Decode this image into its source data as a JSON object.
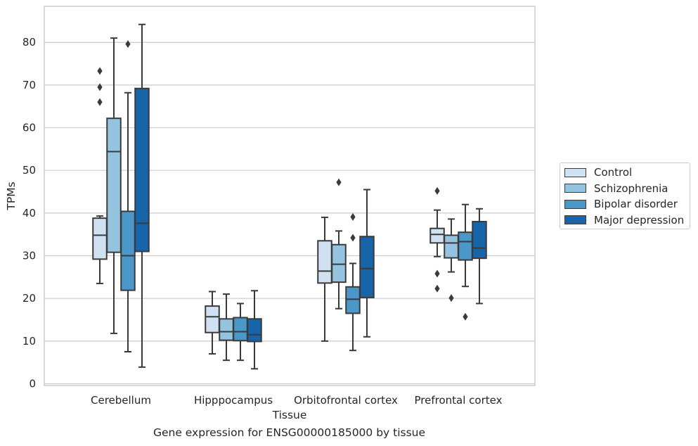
{
  "chart_data": {
    "type": "boxplot",
    "xlabel": "Tissue",
    "ylabel": "TPMs",
    "caption": "Gene expression for ENSG00000185000 by tissue",
    "ylim": [
      0,
      88
    ],
    "yticks": [
      0,
      10,
      20,
      30,
      40,
      50,
      60,
      70,
      80
    ],
    "grid": "horizontal",
    "legend_position": "right, outside plot",
    "categories": [
      "Cerebellum",
      "Hipppocampus",
      "Orbitofrontal cortex",
      "Prefrontal cortex"
    ],
    "series": [
      {
        "name": "Control",
        "color": "#d0e1f2",
        "boxes": [
          {
            "whislo": 23.5,
            "q1": 29.2,
            "med": 34.8,
            "q3": 38.8,
            "whishi": 39.3,
            "fliers": [
              66,
              69.5,
              73.3
            ]
          },
          {
            "whislo": 7,
            "q1": 12,
            "med": 15.7,
            "q3": 18.2,
            "whishi": 21.6,
            "fliers": []
          },
          {
            "whislo": 10,
            "q1": 23.6,
            "med": 26.4,
            "q3": 33.5,
            "whishi": 39,
            "fliers": []
          },
          {
            "whislo": 29.8,
            "q1": 33,
            "med": 35,
            "q3": 36.4,
            "whishi": 40.7,
            "fliers": [
              45.2,
              25.8,
              22.3
            ]
          }
        ]
      },
      {
        "name": "Schizophrenia",
        "color": "#94c4df",
        "boxes": [
          {
            "whislo": 11.8,
            "q1": 30.8,
            "med": 54.4,
            "q3": 62.2,
            "whishi": 81,
            "fliers": []
          },
          {
            "whislo": 5.5,
            "q1": 10.2,
            "med": 12.2,
            "q3": 15.2,
            "whishi": 21,
            "fliers": []
          },
          {
            "whislo": 17.6,
            "q1": 23.8,
            "med": 28,
            "q3": 32.6,
            "whishi": 35.8,
            "fliers": [
              47.2
            ]
          },
          {
            "whislo": 26.2,
            "q1": 29.5,
            "med": 33,
            "q3": 34.8,
            "whishi": 38.6,
            "fliers": [
              20.1
            ]
          }
        ]
      },
      {
        "name": "Bipolar disorder",
        "color": "#4a98c9",
        "boxes": [
          {
            "whislo": 7.5,
            "q1": 21.9,
            "med": 30,
            "q3": 40.4,
            "whishi": 68.2,
            "fliers": [
              79.6
            ]
          },
          {
            "whislo": 5.5,
            "q1": 10.1,
            "med": 12.2,
            "q3": 15.5,
            "whishi": 18.8,
            "fliers": []
          },
          {
            "whislo": 7.8,
            "q1": 16.5,
            "med": 19.8,
            "q3": 22.7,
            "whishi": 28.2,
            "fliers": [
              34.2,
              39.1
            ]
          },
          {
            "whislo": 22.8,
            "q1": 29,
            "med": 33.3,
            "q3": 35.5,
            "whishi": 42,
            "fliers": [
              15.7
            ]
          }
        ]
      },
      {
        "name": "Major depression",
        "color": "#1764ab",
        "boxes": [
          {
            "whislo": 3.9,
            "q1": 31,
            "med": 37.6,
            "q3": 69.2,
            "whishi": 84.2,
            "fliers": []
          },
          {
            "whislo": 3.5,
            "q1": 9.9,
            "med": 11.5,
            "q3": 15.2,
            "whishi": 21.8,
            "fliers": []
          },
          {
            "whislo": 11,
            "q1": 20.2,
            "med": 27,
            "q3": 34.5,
            "whishi": 45.5,
            "fliers": []
          },
          {
            "whislo": 18.8,
            "q1": 29.4,
            "med": 31.8,
            "q3": 38,
            "whishi": 41,
            "fliers": []
          }
        ]
      }
    ]
  }
}
